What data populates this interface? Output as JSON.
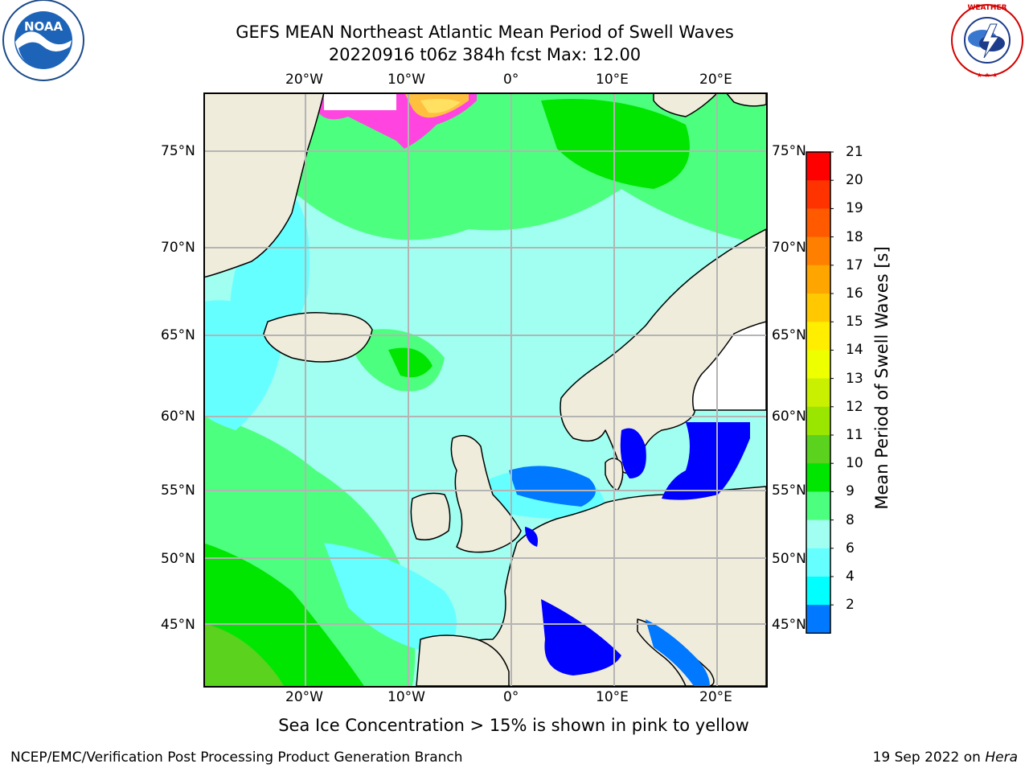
{
  "title": {
    "line1": "GEFS MEAN Northeast Atlantic Mean Period of Swell Waves",
    "line2": "20220916 t06z 384h fcst   Max: 12.00"
  },
  "map": {
    "lon_labels": [
      "20°W",
      "10°W",
      "0°",
      "10°E",
      "20°E"
    ],
    "lat_labels": [
      "75°N",
      "70°N",
      "65°N",
      "60°N",
      "55°N",
      "50°N",
      "45°N"
    ]
  },
  "colorbar": {
    "title": "Mean Period of Swell Waves [s]",
    "ticks": [
      "21",
      "20",
      "19",
      "18",
      "17",
      "16",
      "15",
      "14",
      "13",
      "12",
      "11",
      "10",
      "9",
      "8",
      "6",
      "4",
      "2"
    ],
    "colors": [
      "#ff0000",
      "#ff3300",
      "#ff5a00",
      "#ff8000",
      "#ffa500",
      "#ffc800",
      "#ffee00",
      "#eeff00",
      "#c8f000",
      "#9be600",
      "#5ad21e",
      "#00e600",
      "#4dff7f",
      "#a0fff0",
      "#66ffff",
      "#00ffff",
      "#0078ff"
    ],
    "extend_color": "#0000ff"
  },
  "note": "Sea Ice Concentration > 15% is shown in pink to yellow",
  "footer": {
    "left": "NCEP/EMC/Verification Post Processing Product Generation Branch",
    "right_prefix": "19 Sep 2022 on ",
    "right_machine": "Hera"
  },
  "logos": {
    "noaa_text": "NOAA",
    "nws_text": "NATIONAL WEATHER SERVICE"
  }
}
